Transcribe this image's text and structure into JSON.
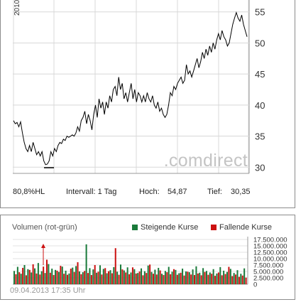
{
  "price_chart": {
    "year_label": "2010",
    "watermark": ".comdirect",
    "y_ticks": [
      "55",
      "50",
      "45",
      "40",
      "35",
      "30"
    ],
    "stats": {
      "hl_label": "80,8%HL",
      "interval_label": "Intervall: 1 Tag",
      "high_label": "Hoch:",
      "high_value": "54,87",
      "low_label": "Tief:",
      "low_value": "30,35"
    }
  },
  "volume_chart": {
    "title": "Volumen (rot-grün)",
    "legend_up": "Steigende Kurse",
    "legend_down": "Fallende Kurse",
    "y_ticks": [
      "17.500.000",
      "15.000.000",
      "12.500.000",
      "10.000.000",
      "7.500.000",
      "5.000.000",
      "2.500.000",
      "0"
    ],
    "timestamp": "09.04.2013 17:35 Uhr"
  },
  "colors": {
    "up": "#1a7a3a",
    "down": "#cc1111",
    "line": "#000000",
    "grid": "#d8d8d8",
    "watermark": "#c4c4c4"
  },
  "chart_data": [
    {
      "type": "line",
      "title": "",
      "ylim": [
        29,
        56
      ],
      "y_ticks": [
        30,
        35,
        40,
        45,
        50,
        55
      ],
      "grid": true,
      "values": [
        37.5,
        37.0,
        37.2,
        36.5,
        37.3,
        35.5,
        34.0,
        33.0,
        32.5,
        33.5,
        32.5,
        34.0,
        33.0,
        32.0,
        32.5,
        31.8,
        32.5,
        31.0,
        30.4,
        30.5,
        31.0,
        32.5,
        31.8,
        33.0,
        32.5,
        33.5,
        34.0,
        33.8,
        34.5,
        34.3,
        35.0,
        34.8,
        35.0,
        35.2,
        35.0,
        35.5,
        36.5,
        35.8,
        37.5,
        38.0,
        39.0,
        37.0,
        38.5,
        37.5,
        36.0,
        38.5,
        40.0,
        38.0,
        41.0,
        39.5,
        40.5,
        38.5,
        40.5,
        39.5,
        41.5,
        40.5,
        42.5,
        43.0,
        41.5,
        44.5,
        42.5,
        43.5,
        41.0,
        42.0,
        40.5,
        42.0,
        43.5,
        41.0,
        42.5,
        40.5,
        42.0,
        41.5,
        40.5,
        41.5,
        40.5,
        42.0,
        41.0,
        40.5,
        41.5,
        40.0,
        39.5,
        40.5,
        39.0,
        39.5,
        38.5,
        38.0,
        38.5,
        40.0,
        42.0,
        41.5,
        43.0,
        42.5,
        43.5,
        44.0,
        44.5,
        43.5,
        44.0,
        46.5,
        45.0,
        45.5,
        44.5,
        45.5,
        46.5,
        47.5,
        46.0,
        47.0,
        48.5,
        47.5,
        49.0,
        48.0,
        49.5,
        48.5,
        50.0,
        49.0,
        50.5,
        51.5,
        50.5,
        52.0,
        51.0,
        50.5,
        49.5,
        50.0,
        51.5,
        53.0,
        54.0,
        54.9,
        54.0,
        53.5,
        54.5,
        53.0,
        52.0,
        51.0
      ],
      "high": 54.87,
      "low": 30.35
    },
    {
      "type": "bar",
      "title": "Volumen (rot-grün)",
      "ylim": [
        0,
        17500000
      ],
      "y_ticks": [
        0,
        2500000,
        5000000,
        7500000,
        10000000,
        12500000,
        15000000,
        17500000
      ],
      "series": [
        {
          "name": "Steigende Kurse",
          "values": [
            5200000,
            6800000,
            4100000,
            7500000,
            5900000,
            4600000,
            6200000,
            8300000,
            5100000,
            4400000,
            7900000,
            6100000,
            5600000,
            4800000,
            6900000,
            5300000,
            4200000,
            6500000,
            7100000,
            5000000,
            4700000,
            15600000,
            6300000,
            5800000,
            4500000,
            7400000,
            6000000,
            4300000,
            5500000,
            6700000,
            4900000,
            7700000,
            5400000,
            6600000,
            4600000,
            5900000,
            4400000,
            6200000,
            5100000,
            7300000,
            4800000,
            5700000,
            6400000,
            4100000,
            5200000,
            6800000,
            4900000,
            5600000,
            4300000,
            6100000,
            5000000,
            4700000,
            5800000,
            7000000,
            4500000,
            6300000,
            5200000,
            4600000,
            5900000,
            4200000,
            6700000,
            5300000,
            4800000,
            6000000,
            4400000,
            5500000,
            4100000,
            6200000
          ]
        },
        {
          "name": "Fallende Kurse",
          "values": [
            3900000,
            4700000,
            6400000,
            3500000,
            5600000,
            7800000,
            4200000,
            3800000,
            6900000,
            9600000,
            4500000,
            3600000,
            5300000,
            7200000,
            4100000,
            3700000,
            6100000,
            4800000,
            8600000,
            3900000,
            5200000,
            4400000,
            3600000,
            7500000,
            4900000,
            3800000,
            6300000,
            5100000,
            4300000,
            14100000,
            3700000,
            5800000,
            4600000,
            3900000,
            6600000,
            4200000,
            5000000,
            3500000,
            4400000,
            7700000,
            4100000,
            3800000,
            5400000,
            3600000,
            4700000,
            3900000,
            5900000,
            3700000,
            4500000,
            3400000,
            4900000,
            3800000,
            3600000,
            4200000,
            3500000,
            4800000,
            3700000,
            4100000,
            3300000,
            4600000,
            3500000,
            4000000,
            6800000,
            3200000,
            3800000,
            2900000,
            3400000,
            2600000
          ]
        }
      ]
    }
  ]
}
